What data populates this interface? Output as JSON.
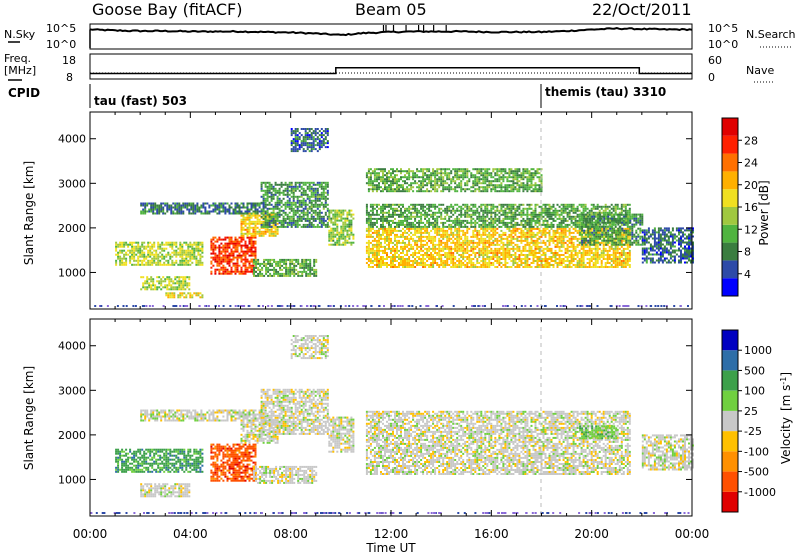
{
  "header": {
    "station": "Goose Bay (fitACF)",
    "beam": "Beam 05",
    "date": "22/Oct/2011"
  },
  "chart_data": [
    {
      "type": "line",
      "panel": "noise",
      "left_label": "N.Sky",
      "right_label": "N.Search",
      "left_ticks": [
        "10^5",
        "10^0"
      ],
      "right_ticks": [
        "10^5",
        "10^0"
      ],
      "xlim_hours": [
        0,
        24
      ],
      "ylim_log10": [
        0,
        5
      ],
      "series": [
        {
          "values_log10_by_hour": [
            3.9,
            3.7,
            3.6,
            3.6,
            3.5,
            3.5,
            3.5,
            3.4,
            3.3,
            3.1,
            2.8,
            3.2,
            3.4,
            3.5,
            3.5,
            3.5,
            3.4,
            3.4,
            3.4,
            3.6,
            3.9,
            4.1,
            4.0,
            3.9,
            3.9
          ]
        }
      ]
    },
    {
      "type": "line",
      "panel": "frequency",
      "left_label_lines": [
        "Freq.",
        "[MHz]"
      ],
      "right_label": "Nave",
      "left_ticks": [
        "18",
        "8"
      ],
      "right_ticks": [
        "60",
        "0"
      ],
      "xlim_hours": [
        0,
        24
      ],
      "ylim": [
        8,
        18
      ],
      "ylim_right": [
        0,
        60
      ],
      "steps": [
        {
          "from": 0,
          "to": 9.8,
          "value": 10.2
        },
        {
          "from": 9.8,
          "to": 21.9,
          "value": 12.5
        },
        {
          "from": 21.9,
          "to": 24,
          "value": 10.2
        }
      ]
    },
    {
      "type": "table",
      "panel": "cpid",
      "label": "CPID",
      "segments": [
        {
          "start_hour": 0,
          "text": "tau (fast) 503"
        },
        {
          "start_hour": 18,
          "text": "themis (tau) 3310"
        }
      ]
    },
    {
      "type": "heatmap",
      "panel": "power",
      "ylabel": "Slant Range [km]",
      "yticks": [
        1000,
        2000,
        3000,
        4000
      ],
      "ylim": [
        180,
        4600
      ],
      "xlim_hours": [
        0,
        24
      ],
      "colorbar": {
        "label": "Power [dB]",
        "ticks": [
          "4",
          "8",
          "12",
          "16",
          "20",
          "24",
          "28"
        ],
        "range": [
          0,
          30
        ],
        "colors": [
          "#0000ff",
          "#2d4aa8",
          "#3a7d40",
          "#50b440",
          "#a0c840",
          "#f0e020",
          "#ffb000",
          "#ff7000",
          "#ff2000",
          "#e00000"
        ]
      },
      "regions": [
        {
          "t": [
            1.0,
            4.5
          ],
          "r": [
            1150,
            1650
          ],
          "level": 14
        },
        {
          "t": [
            2.0,
            4.0
          ],
          "r": [
            600,
            900
          ],
          "level": 14
        },
        {
          "t": [
            3.0,
            4.6
          ],
          "r": [
            420,
            520
          ],
          "level": 16
        },
        {
          "t": [
            4.8,
            6.6
          ],
          "r": [
            950,
            1800
          ],
          "level": 26
        },
        {
          "t": [
            6.0,
            7.5
          ],
          "r": [
            1800,
            2300
          ],
          "level": 18
        },
        {
          "t": [
            2.0,
            7.0
          ],
          "r": [
            2300,
            2550
          ],
          "level": 6
        },
        {
          "t": [
            6.5,
            9.0
          ],
          "r": [
            900,
            1300
          ],
          "level": 10
        },
        {
          "t": [
            6.8,
            9.5
          ],
          "r": [
            2000,
            3000
          ],
          "level": 8
        },
        {
          "t": [
            8.0,
            9.5
          ],
          "r": [
            3700,
            4200
          ],
          "level": 5
        },
        {
          "t": [
            9.5,
            10.5
          ],
          "r": [
            1600,
            2400
          ],
          "level": 12
        },
        {
          "t": [
            11.0,
            21.5
          ],
          "r": [
            1100,
            2000
          ],
          "level": 18
        },
        {
          "t": [
            11.0,
            21.5
          ],
          "r": [
            2000,
            2500
          ],
          "level": 9
        },
        {
          "t": [
            11.0,
            18.0
          ],
          "r": [
            2800,
            3300
          ],
          "level": 10
        },
        {
          "t": [
            19.5,
            22.0
          ],
          "r": [
            1600,
            2300
          ],
          "level": 8
        },
        {
          "t": [
            22.0,
            24.0
          ],
          "r": [
            1200,
            2000
          ],
          "level": 5
        }
      ]
    },
    {
      "type": "heatmap",
      "panel": "velocity",
      "ylabel": "Slant Range [km]",
      "xlabel": "Time UT",
      "yticks": [
        1000,
        2000,
        3000,
        4000
      ],
      "ylim": [
        180,
        4600
      ],
      "xticks": [
        "00:00",
        "04:00",
        "08:00",
        "12:00",
        "16:00",
        "20:00",
        "00:00"
      ],
      "xlim_hours": [
        0,
        24
      ],
      "colorbar": {
        "label_main": "Velocity",
        "label_units": "[m s",
        "label_sup": "-1",
        "label_close": "]",
        "ticks": [
          "-1000",
          "-500",
          "-100",
          "-25",
          "25",
          "100",
          "500",
          "1000"
        ],
        "colors": [
          "#e00000",
          "#ff5000",
          "#ff9000",
          "#ffc000",
          "#c8c8c8",
          "#70d040",
          "#3ca04a",
          "#2e6ea8",
          "#0000c0"
        ]
      },
      "regions": [
        {
          "t": [
            1.0,
            4.5
          ],
          "r": [
            1150,
            1650
          ],
          "band": 6
        },
        {
          "t": [
            2.0,
            4.0
          ],
          "r": [
            600,
            900
          ],
          "band": 4
        },
        {
          "t": [
            4.8,
            6.6
          ],
          "r": [
            950,
            1800
          ],
          "band": 1
        },
        {
          "t": [
            6.0,
            7.5
          ],
          "r": [
            1800,
            2300
          ],
          "band": 4
        },
        {
          "t": [
            2.0,
            7.0
          ],
          "r": [
            2300,
            2550
          ],
          "band": 4
        },
        {
          "t": [
            6.5,
            9.0
          ],
          "r": [
            900,
            1300
          ],
          "band": 4
        },
        {
          "t": [
            6.8,
            9.5
          ],
          "r": [
            2000,
            3000
          ],
          "band": 4
        },
        {
          "t": [
            8.0,
            9.5
          ],
          "r": [
            3700,
            4200
          ],
          "band": 4
        },
        {
          "t": [
            9.5,
            10.5
          ],
          "r": [
            1600,
            2400
          ],
          "band": 4
        },
        {
          "t": [
            11.0,
            21.5
          ],
          "r": [
            1100,
            2000
          ],
          "band": 4
        },
        {
          "t": [
            11.0,
            21.5
          ],
          "r": [
            2000,
            2500
          ],
          "band": 4
        },
        {
          "t": [
            19.5,
            21.0
          ],
          "r": [
            1900,
            2200
          ],
          "band": 5
        },
        {
          "t": [
            22.0,
            24.0
          ],
          "r": [
            1200,
            2000
          ],
          "band": 4
        }
      ]
    }
  ]
}
